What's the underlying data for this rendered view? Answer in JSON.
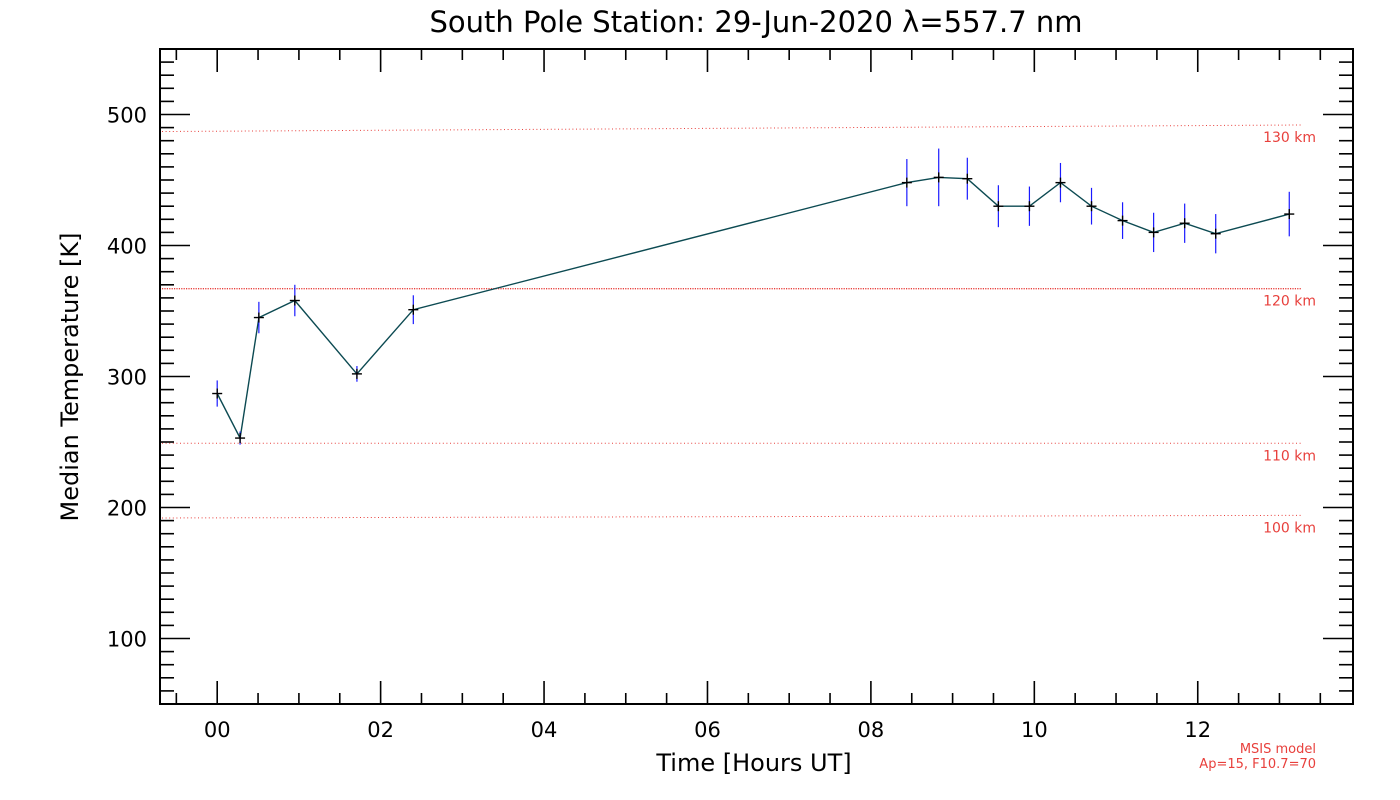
{
  "chart_data": {
    "type": "line",
    "title": "South Pole Station: 29-Jun-2020 λ=557.7 nm",
    "xlabel": "Time [Hours UT]",
    "ylabel": "Median Temperature [K]",
    "xlim": [
      -0.7,
      13.9
    ],
    "ylim": [
      50,
      550
    ],
    "x_ticks": [
      0,
      2,
      4,
      6,
      8,
      10,
      12
    ],
    "x_tick_labels": [
      "00",
      "02",
      "04",
      "06",
      "08",
      "10",
      "12"
    ],
    "y_ticks": [
      100,
      200,
      300,
      400,
      500
    ],
    "y_tick_labels": [
      "100",
      "200",
      "300",
      "400",
      "500"
    ],
    "series": [
      {
        "name": "Median Temperature",
        "color": "#0c4a52",
        "errorbar_color": "#1a1aff",
        "points": [
          {
            "x": 0.0,
            "y": 287,
            "err": 10
          },
          {
            "x": 0.28,
            "y": 253,
            "err": 5
          },
          {
            "x": 0.51,
            "y": 345,
            "err": 12
          },
          {
            "x": 0.95,
            "y": 358,
            "err": 12
          },
          {
            "x": 1.71,
            "y": 302,
            "err": 6
          },
          {
            "x": 2.4,
            "y": 351,
            "err": 11
          },
          {
            "x": 8.44,
            "y": 448,
            "err": 18
          },
          {
            "x": 8.83,
            "y": 452,
            "err": 22
          },
          {
            "x": 9.18,
            "y": 451,
            "err": 16
          },
          {
            "x": 9.56,
            "y": 430,
            "err": 16
          },
          {
            "x": 9.94,
            "y": 430,
            "err": 15
          },
          {
            "x": 10.32,
            "y": 448,
            "err": 15
          },
          {
            "x": 10.7,
            "y": 430,
            "err": 14
          },
          {
            "x": 11.08,
            "y": 419,
            "err": 14
          },
          {
            "x": 11.46,
            "y": 410,
            "err": 15
          },
          {
            "x": 11.84,
            "y": 417,
            "err": 15
          },
          {
            "x": 12.22,
            "y": 409,
            "err": 15
          },
          {
            "x": 13.12,
            "y": 424,
            "err": 17
          }
        ]
      }
    ],
    "reference_lines": [
      {
        "label": "130 km",
        "y_start": 487,
        "y_end": 492,
        "style": "dotted"
      },
      {
        "label": "120 km",
        "y_start": 367,
        "y_end": 367,
        "style": "dense-dotted"
      },
      {
        "label": "110 km",
        "y_start": 249,
        "y_end": 249,
        "style": "dotted"
      },
      {
        "label": "100 km",
        "y_start": 192,
        "y_end": 194,
        "style": "dotted"
      }
    ],
    "reference_color": "#e8403c",
    "notes": [
      "MSIS model",
      "Ap=15, F10.7=70"
    ]
  }
}
